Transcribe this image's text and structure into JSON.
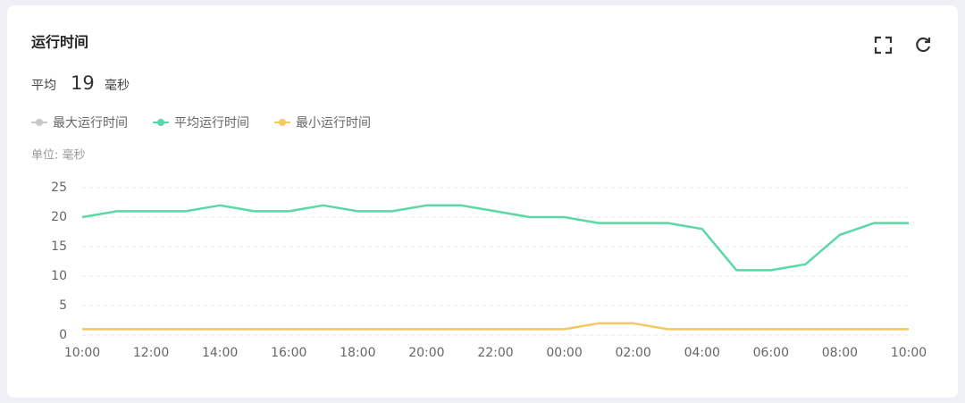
{
  "header": {
    "title": "运行时间",
    "avg_label": "平均",
    "avg_value": 19,
    "avg_unit": "毫秒"
  },
  "chart_data": {
    "type": "line",
    "unit_label": "单位: 毫秒",
    "categories": [
      "10:00",
      null,
      "12:00",
      null,
      "14:00",
      null,
      "16:00",
      null,
      "18:00",
      null,
      "20:00",
      null,
      "22:00",
      null,
      "00:00",
      null,
      "02:00",
      null,
      "04:00",
      null,
      "06:00",
      null,
      "08:00",
      null,
      "10:00"
    ],
    "series": [
      {
        "name": "最大运行时间",
        "color": "#c8c8c8",
        "visible": false,
        "values": [
          null,
          null,
          null,
          null,
          null,
          null,
          null,
          null,
          null,
          null,
          null,
          null,
          null,
          null,
          null,
          null,
          null,
          null,
          null,
          null,
          null,
          null,
          null,
          null,
          null
        ]
      },
      {
        "name": "平均运行时间",
        "color": "#5ad8a6",
        "visible": true,
        "values": [
          20,
          21,
          21,
          21,
          22,
          21,
          21,
          22,
          21,
          21,
          22,
          22,
          21,
          20,
          20,
          19,
          19,
          19,
          18,
          11,
          11,
          12,
          17,
          19,
          19
        ]
      },
      {
        "name": "最小运行时间",
        "color": "#f6c85f",
        "visible": true,
        "values": [
          1,
          1,
          1,
          1,
          1,
          1,
          1,
          1,
          1,
          1,
          1,
          1,
          1,
          1,
          1,
          2,
          2,
          1,
          1,
          1,
          1,
          1,
          1,
          1,
          1
        ]
      }
    ],
    "ylim": [
      0,
      25
    ],
    "yticks": [
      0,
      5,
      10,
      15,
      20,
      25
    ],
    "grid": true
  }
}
